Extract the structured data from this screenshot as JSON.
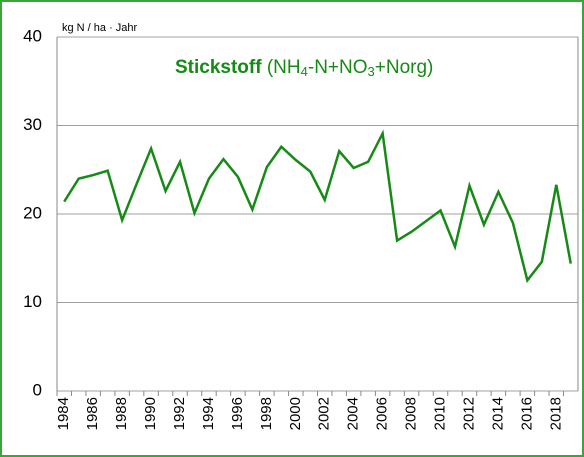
{
  "chart_data": {
    "type": "line",
    "title": {
      "parts": [
        {
          "text": "Stickstoff",
          "style": "bold"
        },
        {
          "text": " (NH",
          "style": "normal"
        },
        {
          "text": "4",
          "style": "sub"
        },
        {
          "text": "-N+NO",
          "style": "normal"
        },
        {
          "text": "3",
          "style": "sub"
        },
        {
          "text": "+Norg)",
          "style": "normal"
        }
      ]
    },
    "y_label": "kg N / ha · Jahr",
    "categories": [
      "1984",
      null,
      "1986",
      null,
      "1988",
      null,
      "1990",
      null,
      "1992",
      null,
      "1994",
      null,
      "1996",
      null,
      "1998",
      null,
      "2000",
      null,
      "2002",
      null,
      "2004",
      null,
      "2006",
      null,
      "2008",
      null,
      "2010",
      null,
      "2012",
      null,
      "2014",
      null,
      "2016",
      null,
      "2018",
      null
    ],
    "series": [
      {
        "name": "Stickstoff",
        "color": "#168a16",
        "values": [
          21.4,
          24,
          24.4,
          24.9,
          19.3,
          23.4,
          27.4,
          22.6,
          25.9,
          20.1,
          24,
          26.2,
          24.2,
          20.5,
          25.3,
          27.6,
          26.1,
          24.8,
          21.6,
          27.1,
          25.2,
          25.9,
          29.1,
          17,
          18,
          19.2,
          20.4,
          16.3,
          23.2,
          18.8,
          22.5,
          19,
          12.5,
          14.6,
          23.3,
          14.4
        ]
      }
    ],
    "ylim": [
      0,
      40
    ],
    "yticks": [
      0,
      10,
      20,
      30,
      40
    ],
    "grid": true
  }
}
